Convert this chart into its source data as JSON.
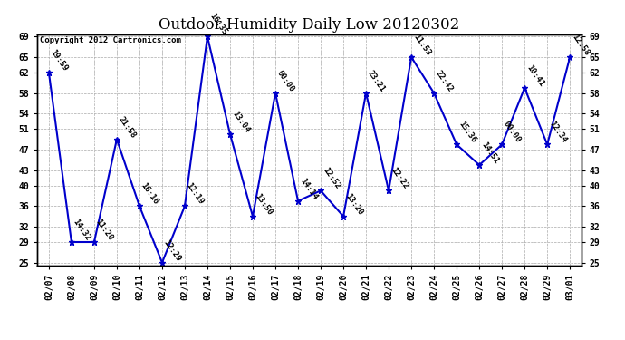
{
  "title": "Outdoor Humidity Daily Low 20120302",
  "copyright": "Copyright 2012 Cartronics.com",
  "x_labels": [
    "02/07",
    "02/08",
    "02/09",
    "02/10",
    "02/11",
    "02/12",
    "02/13",
    "02/14",
    "02/15",
    "02/16",
    "02/17",
    "02/18",
    "02/19",
    "02/20",
    "02/21",
    "02/22",
    "02/23",
    "02/24",
    "02/25",
    "02/26",
    "02/27",
    "02/28",
    "02/29",
    "03/01"
  ],
  "y_values": [
    62,
    29,
    29,
    49,
    36,
    25,
    36,
    69,
    50,
    34,
    58,
    37,
    39,
    34,
    58,
    39,
    65,
    58,
    48,
    44,
    48,
    59,
    48,
    65
  ],
  "time_labels": [
    "19:59",
    "14:32",
    "11:20",
    "21:58",
    "16:16",
    "12:29",
    "12:19",
    "16:35",
    "13:04",
    "13:50",
    "00:00",
    "14:14",
    "12:52",
    "13:20",
    "23:21",
    "12:22",
    "11:53",
    "22:42",
    "15:36",
    "14:51",
    "00:00",
    "10:41",
    "12:34",
    "12:58"
  ],
  "line_color": "#0000CC",
  "marker_color": "#0000CC",
  "background_color": "#FFFFFF",
  "grid_color": "#AAAAAA",
  "title_fontsize": 12,
  "label_fontsize": 6.5,
  "tick_fontsize": 7,
  "copyright_fontsize": 6.5,
  "ylim_min": 25,
  "ylim_max": 69,
  "yticks": [
    25,
    29,
    32,
    36,
    40,
    43,
    47,
    51,
    54,
    58,
    62,
    65,
    69
  ]
}
